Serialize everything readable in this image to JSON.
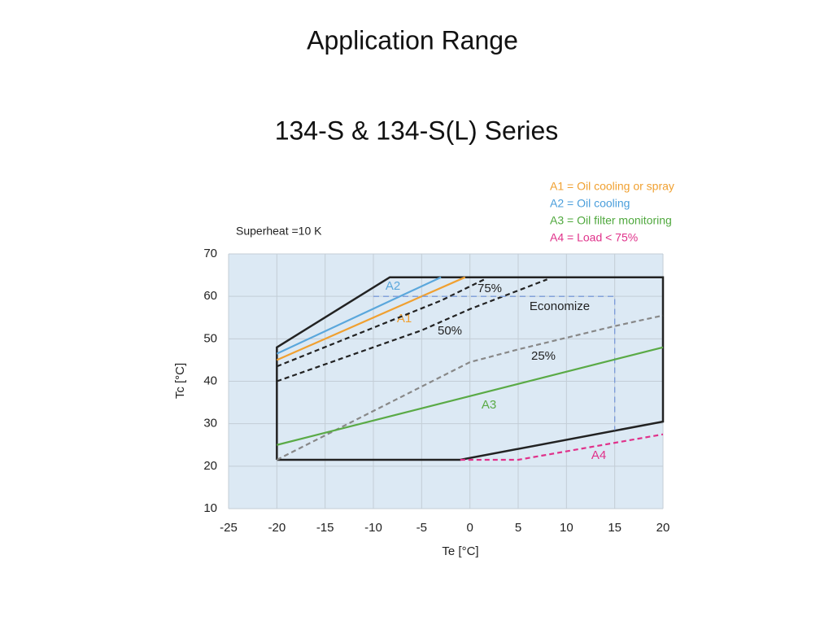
{
  "chart_data": {
    "type": "line",
    "title": "Application Range",
    "subtitle": "134-S & 134-S(L) Series",
    "note": "Superheat =10 K",
    "xlabel": "Te [°C]",
    "ylabel": "Tc [°C]",
    "xlim": [
      -25,
      20
    ],
    "ylim": [
      10,
      70
    ],
    "xticks": [
      -25,
      -20,
      -15,
      -10,
      -5,
      0,
      5,
      10,
      15,
      20
    ],
    "yticks": [
      10,
      20,
      30,
      40,
      50,
      60,
      70
    ],
    "grid": true,
    "legend": [
      {
        "text": "A1 = Oil cooling or spray",
        "color": "#f0a030"
      },
      {
        "text": "A2 = Oil cooling",
        "color": "#4a9edb"
      },
      {
        "text": "A3 = Oil filter monitoring",
        "color": "#4fa83d"
      },
      {
        "text": "A4 = Load < 75%",
        "color": "#e0318a"
      }
    ],
    "series": [
      {
        "color": "#222222",
        "dashed": false,
        "x": [
          -20,
          -20,
          -8.3,
          20,
          20,
          -1,
          -20
        ],
        "values": [
          21.5,
          48,
          64.5,
          64.5,
          30.5,
          21.5,
          21.5
        ]
      },
      {
        "name": "A2",
        "color": "#5aa7dc",
        "dashed": false,
        "x": [
          -20,
          -3
        ],
        "values": [
          46.5,
          64.5
        ]
      },
      {
        "name": "A1",
        "color": "#f0a030",
        "dashed": false,
        "x": [
          -20,
          -0.5
        ],
        "values": [
          45,
          64.5
        ]
      },
      {
        "name": "75%",
        "color": "#222222",
        "dashed": true,
        "x": [
          -20,
          -3,
          1.5
        ],
        "values": [
          43.5,
          59,
          64
        ]
      },
      {
        "name": "50%",
        "color": "#222222",
        "dashed": true,
        "x": [
          -20,
          -5,
          0,
          8
        ],
        "values": [
          40,
          52,
          57,
          64
        ]
      },
      {
        "name": "25%",
        "color": "#888888",
        "dashed": true,
        "x": [
          -20,
          0,
          5,
          15,
          20
        ],
        "values": [
          21.5,
          44.5,
          47.5,
          53,
          55.5
        ]
      },
      {
        "name": "Economize",
        "color": "#7a9ad8",
        "dashed": true,
        "x": [
          -10,
          15,
          15
        ],
        "values": [
          60,
          60,
          28.5
        ]
      },
      {
        "name": "A3",
        "color": "#5aaa46",
        "dashed": false,
        "x": [
          -20,
          20
        ],
        "values": [
          25,
          48
        ]
      },
      {
        "name": "A4",
        "color": "#e0318a",
        "dashed": true,
        "x": [
          -1,
          5,
          20
        ],
        "values": [
          21.5,
          21.5,
          27.5
        ]
      }
    ]
  }
}
